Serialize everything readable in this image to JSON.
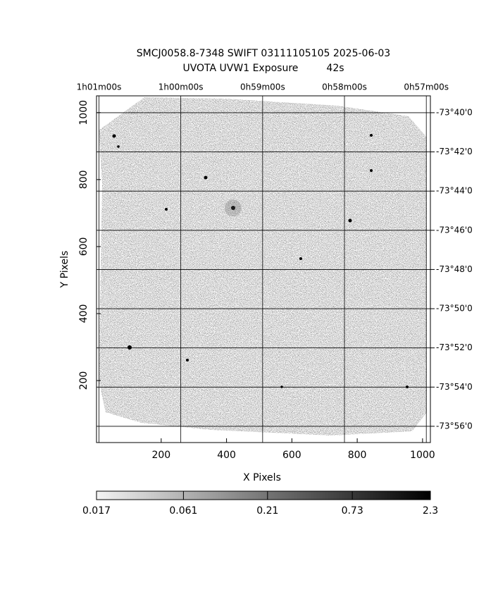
{
  "chart_data": {
    "type": "image",
    "title": "SMCJ0058.8-7348 SWIFT 03111105105 2025-06-03",
    "subtitle": "UVOTA UVW1 Exposure         42s",
    "x_label": "X Pixels",
    "y_label": "Y Pixels",
    "xlim": [
      2,
      1024
    ],
    "xticks": [
      200,
      400,
      600,
      800,
      1000
    ],
    "ylim": [
      15,
      1050
    ],
    "yticks": [
      200,
      400,
      600,
      800,
      1000
    ],
    "x2lim": [
      61.03,
      56.95
    ],
    "x2ticks": [
      {
        "value": 61,
        "label": "1h01m00s"
      },
      {
        "value": 60,
        "label": "1h00m00s"
      },
      {
        "value": 59,
        "label": "0h59m00s"
      },
      {
        "value": 58,
        "label": "0h58m00s"
      },
      {
        "value": 57,
        "label": "0h57m00s"
      }
    ],
    "y2lim": [
      56.83,
      39.14
    ],
    "y2ticks": [
      {
        "value": 40,
        "label": "-73°40'0"
      },
      {
        "value": 42,
        "label": "-73°42'0"
      },
      {
        "value": 44,
        "label": "-73°44'0"
      },
      {
        "value": 46,
        "label": "-73°46'0"
      },
      {
        "value": 48,
        "label": "-73°48'0"
      },
      {
        "value": 50,
        "label": "-73°50'0"
      },
      {
        "value": 52,
        "label": "-73°52'0"
      },
      {
        "value": 54,
        "label": "-73°54'0"
      },
      {
        "value": 56,
        "label": "-73°56'0"
      }
    ],
    "grid": true,
    "colorbar_lim": [
      0.017,
      2.3
    ],
    "colorbar_log": true,
    "colorbar_ticks": [
      {
        "value": 0.017,
        "label": "0.017"
      },
      {
        "value": 0.061,
        "label": "0.061"
      },
      {
        "value": 0.21,
        "label": "0.21"
      },
      {
        "value": 0.73,
        "label": "0.73"
      },
      {
        "value": 2.3,
        "label": "2.3"
      }
    ]
  }
}
